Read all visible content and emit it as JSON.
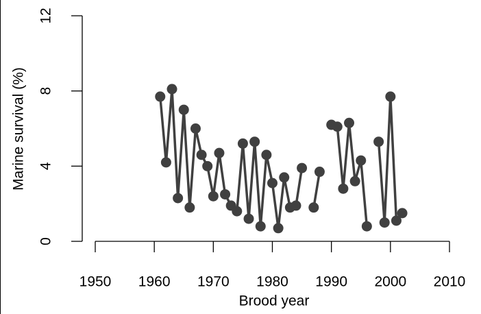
{
  "chart_data": {
    "type": "line",
    "x_label": "Brood year",
    "y_label": "Marine survival (%)",
    "x": [
      1961,
      1962,
      1963,
      1964,
      1965,
      1966,
      1967,
      1968,
      1969,
      1970,
      1971,
      1972,
      1973,
      1974,
      1975,
      1976,
      1977,
      1978,
      1979,
      1980,
      1981,
      1982,
      1983,
      1984,
      1985,
      1986,
      1987,
      1988,
      1989,
      1990,
      1991,
      1992,
      1993,
      1994,
      1995,
      1996,
      1997,
      1998,
      1999,
      2000,
      2001,
      2002
    ],
    "values": [
      7.7,
      4.2,
      8.1,
      2.3,
      7.0,
      1.8,
      6.0,
      4.6,
      4.0,
      2.4,
      4.7,
      2.5,
      1.9,
      1.6,
      5.2,
      1.2,
      5.3,
      0.8,
      4.6,
      3.1,
      0.7,
      3.4,
      1.8,
      1.9,
      3.9,
      null,
      1.8,
      3.7,
      null,
      6.2,
      6.1,
      2.8,
      6.3,
      3.2,
      4.3,
      0.8,
      null,
      5.3,
      1.0,
      7.7,
      1.1,
      1.5
    ],
    "color": "#404040",
    "xlim": [
      1950,
      2010
    ],
    "xticks": [
      1950,
      1960,
      1970,
      1980,
      1990,
      2000,
      2010
    ],
    "ylim": [
      0,
      12
    ],
    "yticks": [
      0,
      4,
      8,
      12
    ]
  }
}
